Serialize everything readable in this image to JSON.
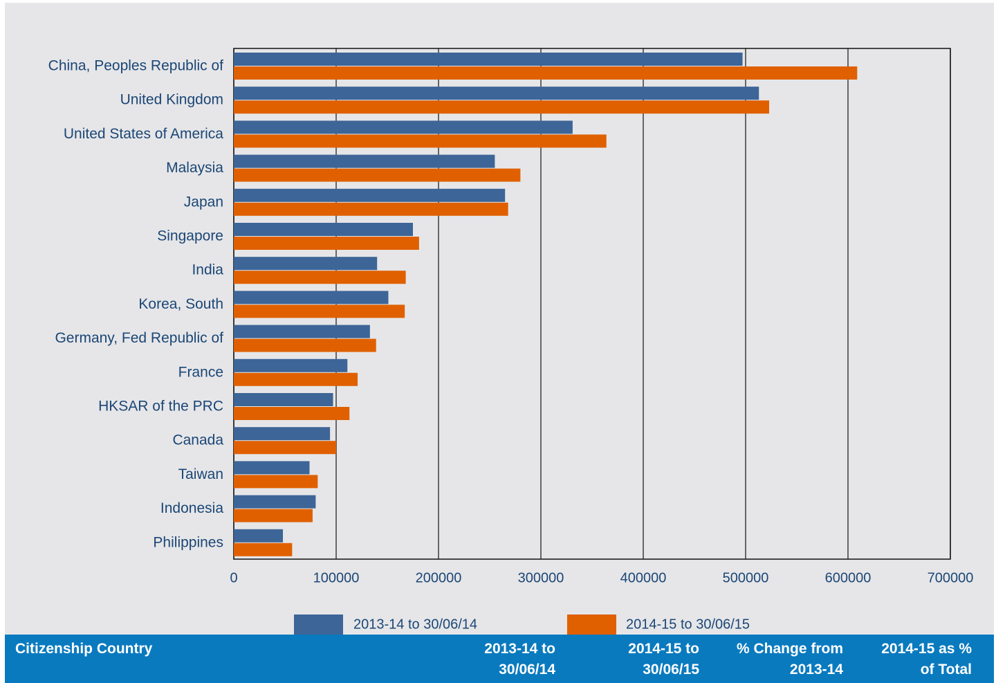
{
  "chart_data": {
    "type": "bar",
    "orientation": "horizontal",
    "categories": [
      "China, Peoples Republic of",
      "United Kingdom",
      "United States of America",
      "Malaysia",
      "Japan",
      "Singapore",
      "India",
      "Korea, South",
      "Germany, Fed Republic of",
      "France",
      "HKSAR of the PRC",
      "Canada",
      "Taiwan",
      "Indonesia",
      "Philippines"
    ],
    "series": [
      {
        "name": "2013-14 to 30/06/14",
        "color": "#3d6597",
        "values": [
          497000,
          513000,
          331000,
          255000,
          265000,
          175000,
          140000,
          151000,
          133000,
          111000,
          97000,
          94000,
          74000,
          80000,
          48000
        ]
      },
      {
        "name": "2014-15 to 30/06/15",
        "color": "#e06000",
        "values": [
          609000,
          523000,
          364000,
          280000,
          268000,
          181000,
          168000,
          167000,
          139000,
          121000,
          113000,
          100000,
          82000,
          77000,
          57000
        ]
      }
    ],
    "xlim": [
      0,
      700000
    ],
    "xticks": [
      0,
      100000,
      200000,
      300000,
      400000,
      500000,
      600000,
      700000
    ],
    "grid": true,
    "legend": "bottom"
  },
  "table": {
    "columns": [
      "Citizenship Country",
      "2013-14 to\n30/06/14",
      "2014-15 to\n30/06/15",
      "% Change from\n2013-14",
      "2014-15 as %\nof Total"
    ]
  }
}
